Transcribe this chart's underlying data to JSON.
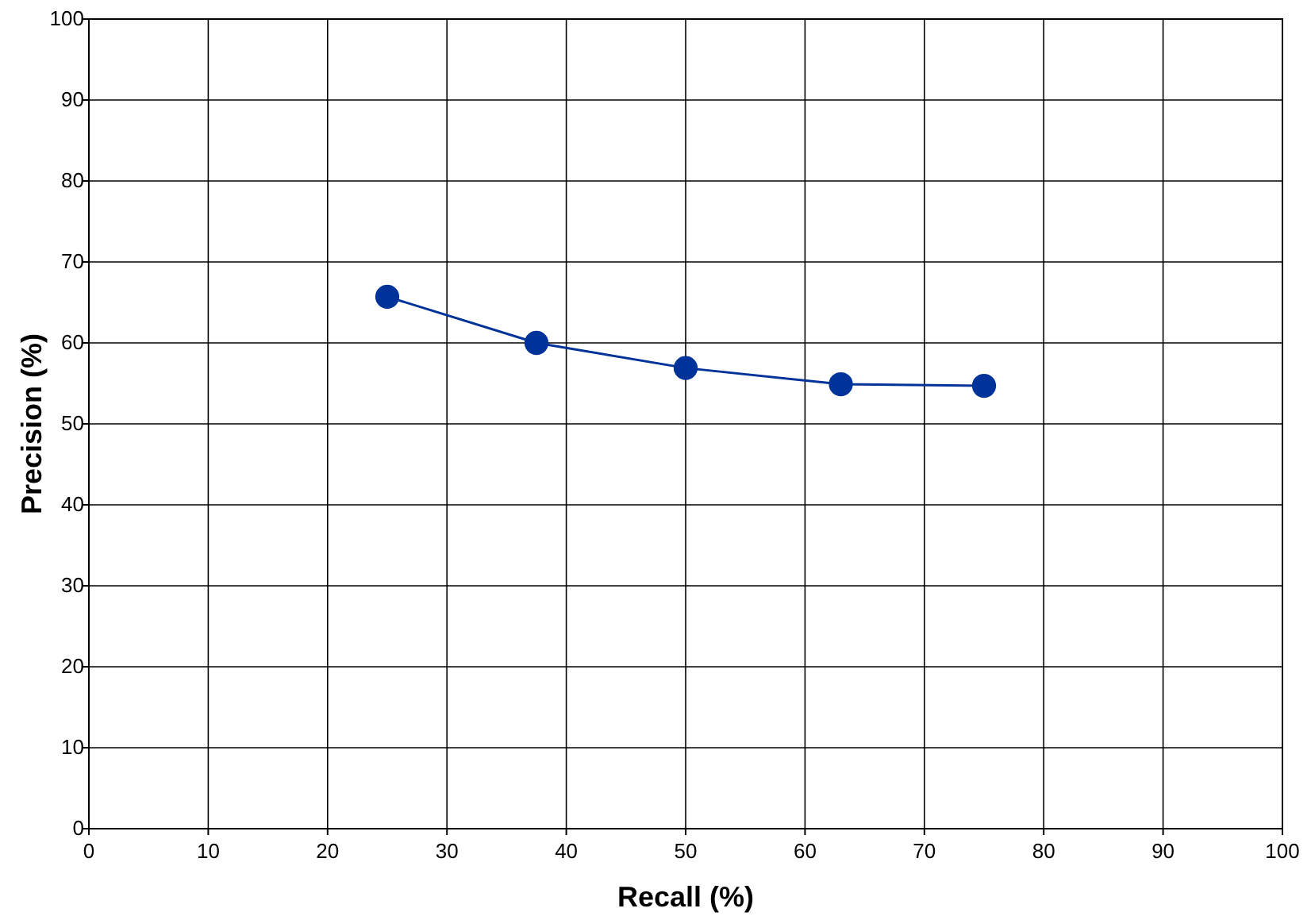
{
  "chart_data": {
    "type": "line",
    "xlabel": "Recall (%)",
    "ylabel": "Precision (%)",
    "x": [
      25,
      37.5,
      50,
      63,
      75
    ],
    "series": [
      {
        "color": "#003399",
        "values": [
          65.7,
          60,
          56.9,
          54.9,
          54.7
        ]
      }
    ],
    "xlim": [
      0,
      100
    ],
    "ylim": [
      0,
      100
    ],
    "xticks": [
      0,
      10,
      20,
      30,
      40,
      50,
      60,
      70,
      80,
      90,
      100
    ],
    "yticks": [
      0,
      10,
      20,
      30,
      40,
      50,
      60,
      70,
      80,
      90,
      100
    ],
    "grid": true,
    "marker": "circle",
    "line_style": "solid"
  }
}
